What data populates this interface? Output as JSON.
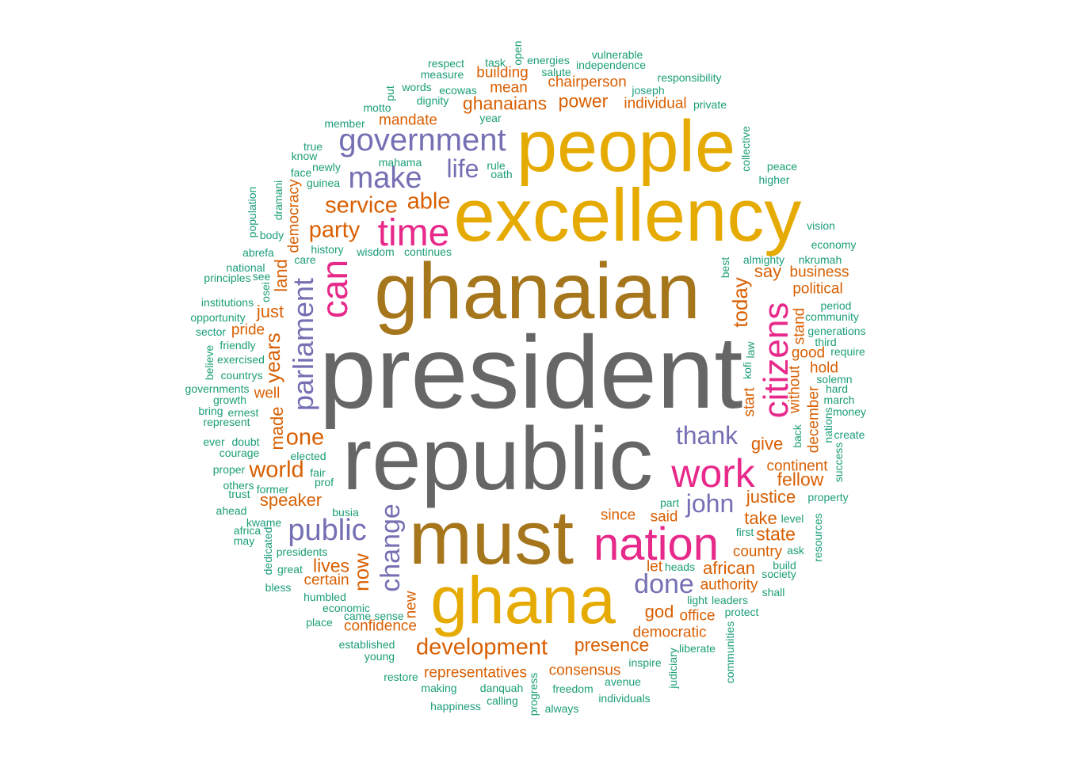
{
  "colors": {
    "c1": "#1b9e77",
    "c2": "#d95f02",
    "c3": "#7570b3",
    "c4": "#e7298a",
    "c5": "#e6ab02",
    "c6": "#a6761d",
    "c7": "#666666"
  },
  "words": [
    {
      "text": "president",
      "color": "c7"
    },
    {
      "text": "republic",
      "color": "c7"
    },
    {
      "text": "ghanaian",
      "color": "c6"
    },
    {
      "text": "must",
      "color": "c6"
    },
    {
      "text": "excellency",
      "color": "c5"
    },
    {
      "text": "people",
      "color": "c5"
    },
    {
      "text": "ghana",
      "color": "c5"
    },
    {
      "text": "nation",
      "color": "c4"
    },
    {
      "text": "work",
      "color": "c4"
    },
    {
      "text": "time",
      "color": "c4"
    },
    {
      "text": "can",
      "color": "c4"
    },
    {
      "text": "citizens",
      "color": "c4"
    },
    {
      "text": "government",
      "color": "c3"
    },
    {
      "text": "make",
      "color": "c3"
    },
    {
      "text": "life",
      "color": "c3"
    },
    {
      "text": "parliament",
      "color": "c3"
    },
    {
      "text": "public",
      "color": "c3"
    },
    {
      "text": "change",
      "color": "c3"
    },
    {
      "text": "thank",
      "color": "c3"
    },
    {
      "text": "john",
      "color": "c3"
    },
    {
      "text": "done",
      "color": "c3"
    },
    {
      "text": "development",
      "color": "c2"
    },
    {
      "text": "representatives",
      "color": "c2"
    },
    {
      "text": "consensus",
      "color": "c2"
    },
    {
      "text": "presence",
      "color": "c2"
    },
    {
      "text": "democratic",
      "color": "c2"
    },
    {
      "text": "office",
      "color": "c2"
    },
    {
      "text": "god",
      "color": "c2"
    },
    {
      "text": "authority",
      "color": "c2"
    },
    {
      "text": "african",
      "color": "c2"
    },
    {
      "text": "country",
      "color": "c2"
    },
    {
      "text": "state",
      "color": "c2"
    },
    {
      "text": "take",
      "color": "c2"
    },
    {
      "text": "justice",
      "color": "c2"
    },
    {
      "text": "fellow",
      "color": "c2"
    },
    {
      "text": "continent",
      "color": "c2"
    },
    {
      "text": "give",
      "color": "c2"
    },
    {
      "text": "december",
      "color": "c2"
    },
    {
      "text": "without",
      "color": "c2"
    },
    {
      "text": "hold",
      "color": "c2"
    },
    {
      "text": "good",
      "color": "c2"
    },
    {
      "text": "stand",
      "color": "c2"
    },
    {
      "text": "political",
      "color": "c2"
    },
    {
      "text": "business",
      "color": "c2"
    },
    {
      "text": "say",
      "color": "c2"
    },
    {
      "text": "today",
      "color": "c2"
    },
    {
      "text": "start",
      "color": "c2"
    },
    {
      "text": "said",
      "color": "c2"
    },
    {
      "text": "since",
      "color": "c2"
    },
    {
      "text": "let",
      "color": "c2"
    },
    {
      "text": "new",
      "color": "c2"
    },
    {
      "text": "now",
      "color": "c2"
    },
    {
      "text": "confidence",
      "color": "c2"
    },
    {
      "text": "certain",
      "color": "c2"
    },
    {
      "text": "lives",
      "color": "c2"
    },
    {
      "text": "speaker",
      "color": "c2"
    },
    {
      "text": "world",
      "color": "c2"
    },
    {
      "text": "one",
      "color": "c2"
    },
    {
      "text": "made",
      "color": "c2"
    },
    {
      "text": "well",
      "color": "c2"
    },
    {
      "text": "years",
      "color": "c2"
    },
    {
      "text": "pride",
      "color": "c2"
    },
    {
      "text": "just",
      "color": "c2"
    },
    {
      "text": "land",
      "color": "c2"
    },
    {
      "text": "democracy",
      "color": "c2"
    },
    {
      "text": "party",
      "color": "c2"
    },
    {
      "text": "service",
      "color": "c2"
    },
    {
      "text": "able",
      "color": "c2"
    },
    {
      "text": "mandate",
      "color": "c2"
    },
    {
      "text": "ghanaians",
      "color": "c2"
    },
    {
      "text": "power",
      "color": "c2"
    },
    {
      "text": "individual",
      "color": "c2"
    },
    {
      "text": "mean",
      "color": "c2"
    },
    {
      "text": "building",
      "color": "c2"
    },
    {
      "text": "chairperson",
      "color": "c2"
    },
    {
      "text": "respect",
      "color": "c1"
    },
    {
      "text": "task",
      "color": "c1"
    },
    {
      "text": "open",
      "color": "c1"
    },
    {
      "text": "energies",
      "color": "c1"
    },
    {
      "text": "vulnerable",
      "color": "c1"
    },
    {
      "text": "independence",
      "color": "c1"
    },
    {
      "text": "measure",
      "color": "c1"
    },
    {
      "text": "salute",
      "color": "c1"
    },
    {
      "text": "responsibility",
      "color": "c1"
    },
    {
      "text": "words",
      "color": "c1"
    },
    {
      "text": "ecowas",
      "color": "c1"
    },
    {
      "text": "joseph",
      "color": "c1"
    },
    {
      "text": "put",
      "color": "c1"
    },
    {
      "text": "dignity",
      "color": "c1"
    },
    {
      "text": "motto",
      "color": "c1"
    },
    {
      "text": "private",
      "color": "c1"
    },
    {
      "text": "year",
      "color": "c1"
    },
    {
      "text": "member",
      "color": "c1"
    },
    {
      "text": "true",
      "color": "c1"
    },
    {
      "text": "know",
      "color": "c1"
    },
    {
      "text": "mahama",
      "color": "c1"
    },
    {
      "text": "collective",
      "color": "c1"
    },
    {
      "text": "newly",
      "color": "c1"
    },
    {
      "text": "rule",
      "color": "c1"
    },
    {
      "text": "face",
      "color": "c1"
    },
    {
      "text": "oath",
      "color": "c1"
    },
    {
      "text": "peace",
      "color": "c1"
    },
    {
      "text": "guinea",
      "color": "c1"
    },
    {
      "text": "higher",
      "color": "c1"
    },
    {
      "text": "dramani",
      "color": "c1"
    },
    {
      "text": "population",
      "color": "c1"
    },
    {
      "text": "body",
      "color": "c1"
    },
    {
      "text": "vision",
      "color": "c1"
    },
    {
      "text": "economy",
      "color": "c1"
    },
    {
      "text": "abrefa",
      "color": "c1"
    },
    {
      "text": "history",
      "color": "c1"
    },
    {
      "text": "wisdom",
      "color": "c1"
    },
    {
      "text": "continues",
      "color": "c1"
    },
    {
      "text": "care",
      "color": "c1"
    },
    {
      "text": "almighty",
      "color": "c1"
    },
    {
      "text": "nkrumah",
      "color": "c1"
    },
    {
      "text": "national",
      "color": "c1"
    },
    {
      "text": "best",
      "color": "c1"
    },
    {
      "text": "principles",
      "color": "c1"
    },
    {
      "text": "see",
      "color": "c1"
    },
    {
      "text": "osei",
      "color": "c1"
    },
    {
      "text": "period",
      "color": "c1"
    },
    {
      "text": "institutions",
      "color": "c1"
    },
    {
      "text": "community",
      "color": "c1"
    },
    {
      "text": "opportunity",
      "color": "c1"
    },
    {
      "text": "generations",
      "color": "c1"
    },
    {
      "text": "sector",
      "color": "c1"
    },
    {
      "text": "third",
      "color": "c1"
    },
    {
      "text": "friendly",
      "color": "c1"
    },
    {
      "text": "law",
      "color": "c1"
    },
    {
      "text": "require",
      "color": "c1"
    },
    {
      "text": "believe",
      "color": "c1"
    },
    {
      "text": "exercised",
      "color": "c1"
    },
    {
      "text": "kofi",
      "color": "c1"
    },
    {
      "text": "solemn",
      "color": "c1"
    },
    {
      "text": "countrys",
      "color": "c1"
    },
    {
      "text": "hard",
      "color": "c1"
    },
    {
      "text": "governments",
      "color": "c1"
    },
    {
      "text": "growth",
      "color": "c1"
    },
    {
      "text": "march",
      "color": "c1"
    },
    {
      "text": "bring",
      "color": "c1"
    },
    {
      "text": "ernest",
      "color": "c1"
    },
    {
      "text": "money",
      "color": "c1"
    },
    {
      "text": "represent",
      "color": "c1"
    },
    {
      "text": "nations",
      "color": "c1"
    },
    {
      "text": "back",
      "color": "c1"
    },
    {
      "text": "create",
      "color": "c1"
    },
    {
      "text": "ever",
      "color": "c1"
    },
    {
      "text": "doubt",
      "color": "c1"
    },
    {
      "text": "courage",
      "color": "c1"
    },
    {
      "text": "elected",
      "color": "c1"
    },
    {
      "text": "success",
      "color": "c1"
    },
    {
      "text": "proper",
      "color": "c1"
    },
    {
      "text": "fair",
      "color": "c1"
    },
    {
      "text": "others",
      "color": "c1"
    },
    {
      "text": "prof",
      "color": "c1"
    },
    {
      "text": "former",
      "color": "c1"
    },
    {
      "text": "trust",
      "color": "c1"
    },
    {
      "text": "property",
      "color": "c1"
    },
    {
      "text": "part",
      "color": "c1"
    },
    {
      "text": "ahead",
      "color": "c1"
    },
    {
      "text": "busia",
      "color": "c1"
    },
    {
      "text": "kwame",
      "color": "c1"
    },
    {
      "text": "level",
      "color": "c1"
    },
    {
      "text": "africa",
      "color": "c1"
    },
    {
      "text": "first",
      "color": "c1"
    },
    {
      "text": "may",
      "color": "c1"
    },
    {
      "text": "resources",
      "color": "c1"
    },
    {
      "text": "dedicated",
      "color": "c1"
    },
    {
      "text": "presidents",
      "color": "c1"
    },
    {
      "text": "ask",
      "color": "c1"
    },
    {
      "text": "build",
      "color": "c1"
    },
    {
      "text": "heads",
      "color": "c1"
    },
    {
      "text": "great",
      "color": "c1"
    },
    {
      "text": "society",
      "color": "c1"
    },
    {
      "text": "bless",
      "color": "c1"
    },
    {
      "text": "shall",
      "color": "c1"
    },
    {
      "text": "humbled",
      "color": "c1"
    },
    {
      "text": "light",
      "color": "c1"
    },
    {
      "text": "leaders",
      "color": "c1"
    },
    {
      "text": "economic",
      "color": "c1"
    },
    {
      "text": "protect",
      "color": "c1"
    },
    {
      "text": "came",
      "color": "c1"
    },
    {
      "text": "sense",
      "color": "c1"
    },
    {
      "text": "place",
      "color": "c1"
    },
    {
      "text": "communities",
      "color": "c1"
    },
    {
      "text": "established",
      "color": "c1"
    },
    {
      "text": "liberate",
      "color": "c1"
    },
    {
      "text": "young",
      "color": "c1"
    },
    {
      "text": "inspire",
      "color": "c1"
    },
    {
      "text": "judiciary",
      "color": "c1"
    },
    {
      "text": "restore",
      "color": "c1"
    },
    {
      "text": "avenue",
      "color": "c1"
    },
    {
      "text": "making",
      "color": "c1"
    },
    {
      "text": "danquah",
      "color": "c1"
    },
    {
      "text": "freedom",
      "color": "c1"
    },
    {
      "text": "individuals",
      "color": "c1"
    },
    {
      "text": "progress",
      "color": "c1"
    },
    {
      "text": "calling",
      "color": "c1"
    },
    {
      "text": "happiness",
      "color": "c1"
    },
    {
      "text": "always",
      "color": "c1"
    }
  ]
}
